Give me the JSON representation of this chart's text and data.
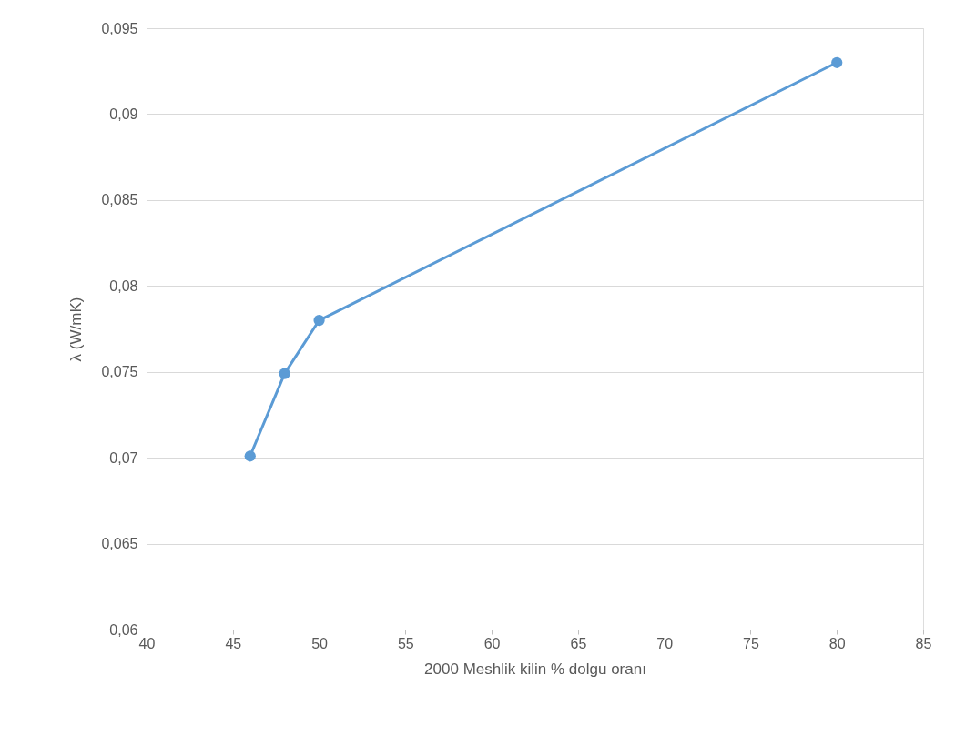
{
  "chart_data": {
    "type": "line",
    "xlabel": "2000 Meshlik kilin % dolgu oranı",
    "ylabel": "λ (W/mK)",
    "x": [
      46,
      48,
      50,
      80
    ],
    "series": [
      {
        "color": "#5b9bd5",
        "values": [
          0.0701,
          0.0749,
          0.078,
          0.093
        ]
      }
    ],
    "xlim": [
      40,
      85
    ],
    "xticks": [
      40,
      45,
      50,
      55,
      60,
      65,
      70,
      75,
      80,
      85
    ],
    "ylim": [
      0.06,
      0.095
    ],
    "yticks": [
      {
        "value": 0.06,
        "label": "0,06"
      },
      {
        "value": 0.065,
        "label": "0,065"
      },
      {
        "value": 0.07,
        "label": "0,07"
      },
      {
        "value": 0.075,
        "label": "0,075"
      },
      {
        "value": 0.08,
        "label": "0,08"
      },
      {
        "value": 0.085,
        "label": "0,085"
      },
      {
        "value": 0.09,
        "label": "0,09"
      },
      {
        "value": 0.095,
        "label": "0,095"
      }
    ],
    "grid": "y",
    "marker": "circle",
    "line_style": "solid"
  }
}
